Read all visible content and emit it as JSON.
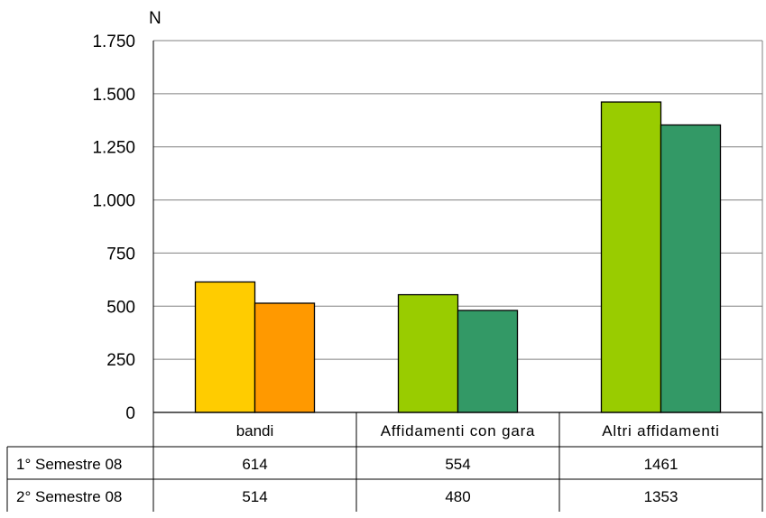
{
  "chart_data": {
    "type": "bar",
    "categories": [
      "bandi",
      "Affidamenti con gara",
      "Altri affidamenti"
    ],
    "series": [
      {
        "name": "1° Semestre 08",
        "values": [
          614,
          554,
          1461
        ]
      },
      {
        "name": "2° Semestre 08",
        "values": [
          514,
          480,
          1353
        ]
      }
    ],
    "bar_colors": [
      [
        "#FFCC00",
        "#FF9900"
      ],
      [
        "#99CC00",
        "#339966"
      ],
      [
        "#99CC00",
        "#339966"
      ]
    ],
    "ylabel": "N",
    "ylim": [
      0,
      1750
    ],
    "yticks": [
      0,
      250,
      500,
      750,
      1000,
      1250,
      1500,
      1750
    ],
    "ytick_labels": [
      "0",
      "250",
      "500",
      "750",
      "1.000",
      "1.250",
      "1.500",
      "1.750"
    ],
    "grid": true,
    "legend": "data-table-below",
    "table": {
      "rows": [
        {
          "label": "1° Semestre 08",
          "values": [
            "614",
            "554",
            "1461"
          ]
        },
        {
          "label": "2° Semestre 08",
          "values": [
            "514",
            "480",
            "1353"
          ]
        }
      ]
    }
  }
}
